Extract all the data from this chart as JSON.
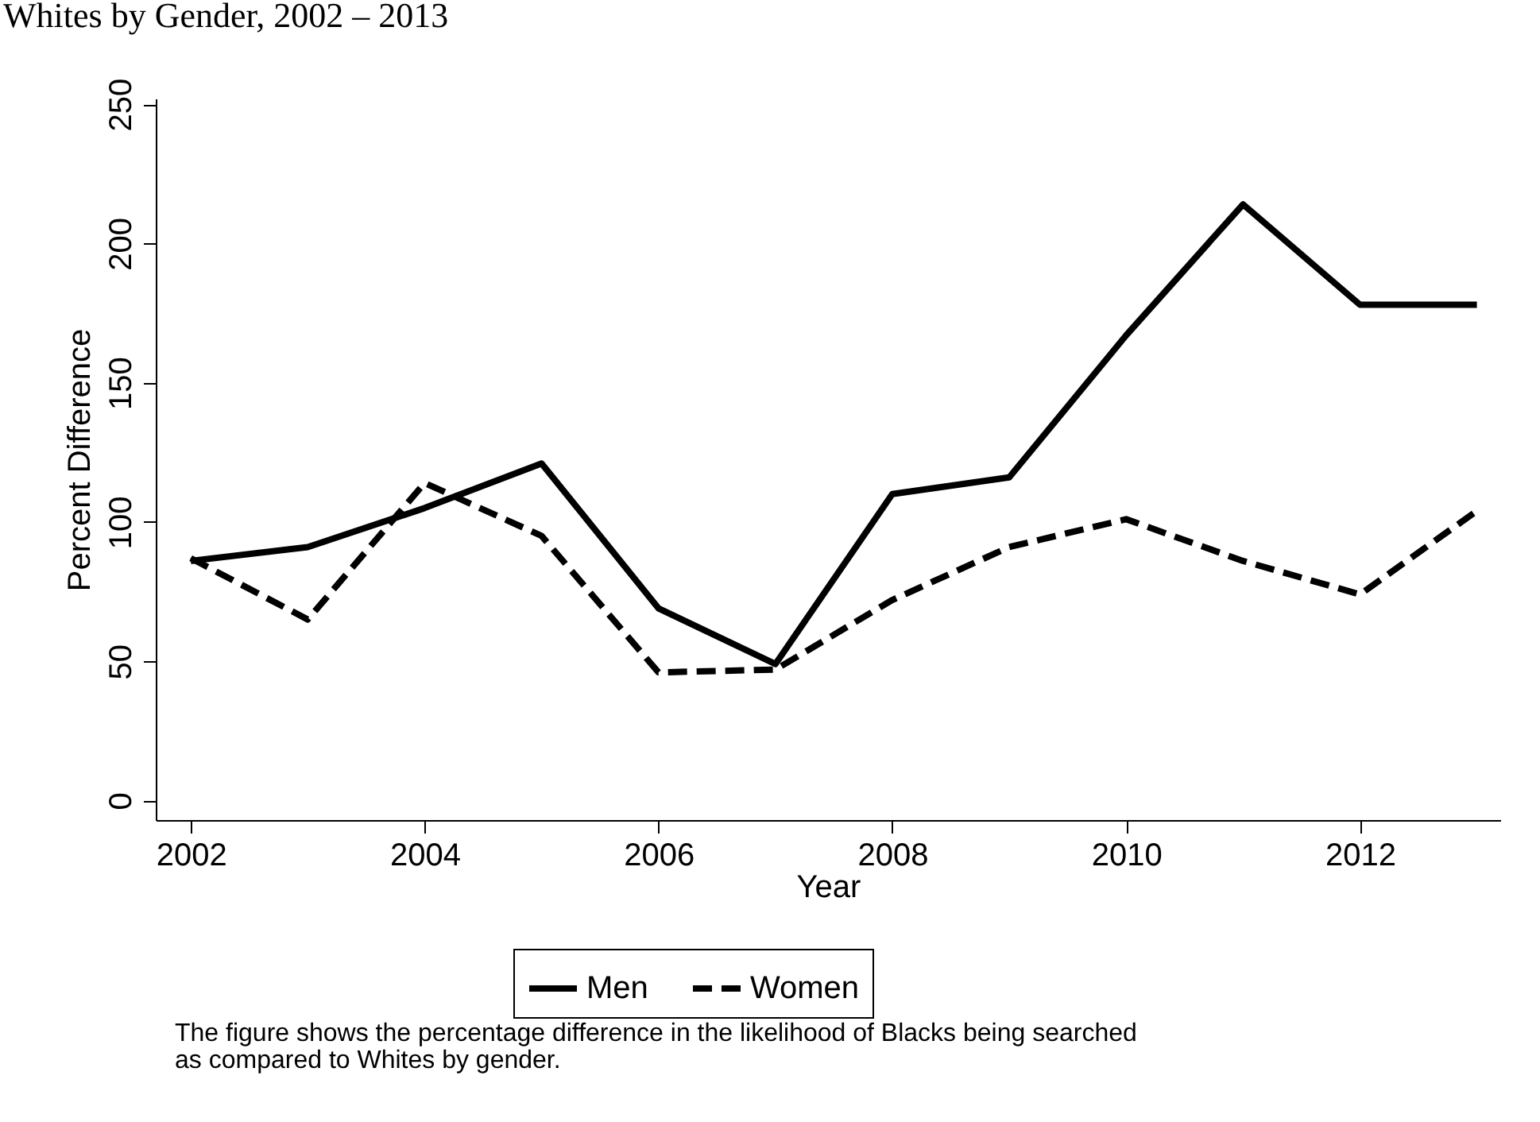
{
  "chart_data": {
    "type": "line",
    "title": "Whites by Gender, 2002 – 2013",
    "xlabel": "Year",
    "ylabel": "Percent Difference",
    "x": [
      2002,
      2003,
      2004,
      2005,
      2006,
      2007,
      2008,
      2009,
      2010,
      2011,
      2012,
      2013
    ],
    "series": [
      {
        "name": "Men",
        "color": "#000000",
        "line_style": "solid",
        "values": [
          86,
          91,
          105,
          121,
          69,
          49,
          110,
          116,
          167,
          214,
          178,
          178
        ]
      },
      {
        "name": "Women",
        "color": "#000000",
        "line_style": "dashed",
        "values": [
          87,
          65,
          114,
          95,
          46,
          47,
          72,
          91,
          101,
          86,
          74,
          104
        ]
      }
    ],
    "xlim": [
      2001.7,
      2013.2
    ],
    "xticks": [
      2002,
      2004,
      2006,
      2008,
      2010,
      2012
    ],
    "ylim": [
      -7,
      252
    ],
    "yticks": [
      0,
      50,
      100,
      150,
      200,
      250
    ],
    "grid": false,
    "legend": "bottom",
    "marker": "none",
    "annotations": [
      "The figure shows the percentage difference in the likelihood of Blacks being searched\nas compared to Whites by gender."
    ]
  }
}
